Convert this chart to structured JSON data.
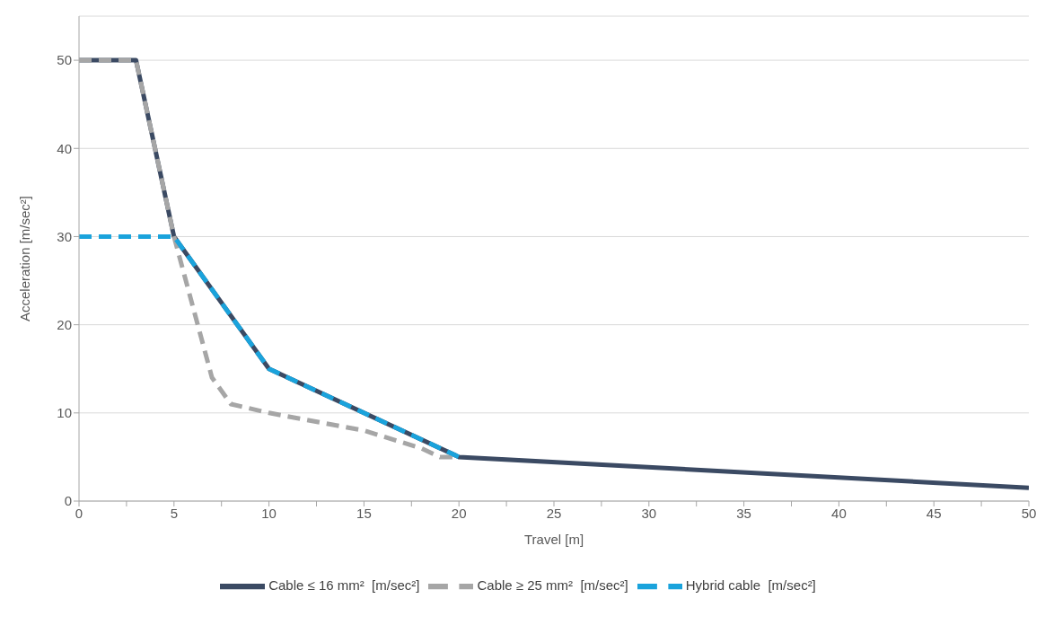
{
  "chart_data": {
    "type": "line",
    "xlabel": "Travel [m]",
    "ylabel": "Acceleration  [m/sec²]",
    "xlim": [
      0,
      50
    ],
    "xticks": [
      0,
      {
        "value": 2.5,
        "label": null
      },
      5,
      {
        "value": 7.5,
        "label": null
      },
      10,
      {
        "value": 12.5,
        "label": null
      },
      15,
      {
        "value": 17.5,
        "label": null
      },
      20,
      {
        "value": 22.5,
        "label": null
      },
      25,
      {
        "value": 27.5,
        "label": null
      },
      30,
      {
        "value": 32.5,
        "label": null
      },
      35,
      {
        "value": 37.5,
        "label": null
      },
      40,
      {
        "value": 42.5,
        "label": null
      },
      45,
      {
        "value": 47.5,
        "label": null
      },
      50
    ],
    "ylim": [
      0,
      55
    ],
    "yticks": [
      0,
      10,
      20,
      30,
      40,
      50
    ],
    "grid": "y",
    "legend": "bottom",
    "marker": "none",
    "series": [
      {
        "name": "Cable ≤ 16 mm²  [m/sec²]",
        "color": "#3b4a63",
        "line_style": "solid",
        "x": [
          0,
          3,
          5,
          10,
          20,
          50
        ],
        "values": [
          50,
          50,
          30,
          15,
          5,
          1.5
        ]
      },
      {
        "name": "Cable ≥ 25 mm²  [m/sec²]",
        "color": "#a6a6a6",
        "line_style": "dashed",
        "x": [
          0,
          3,
          4,
          5,
          6,
          6.5,
          7,
          8,
          10,
          15,
          18,
          19,
          20
        ],
        "values": [
          50,
          50,
          40,
          30,
          22,
          18,
          14,
          11,
          10,
          8,
          6,
          5,
          5
        ]
      },
      {
        "name": "Hybrid cable  [m/sec²]",
        "color": "#1aa3dc",
        "line_style": "dashed",
        "x": [
          0,
          5,
          10,
          20
        ],
        "values": [
          30,
          30,
          15,
          5
        ]
      }
    ]
  }
}
